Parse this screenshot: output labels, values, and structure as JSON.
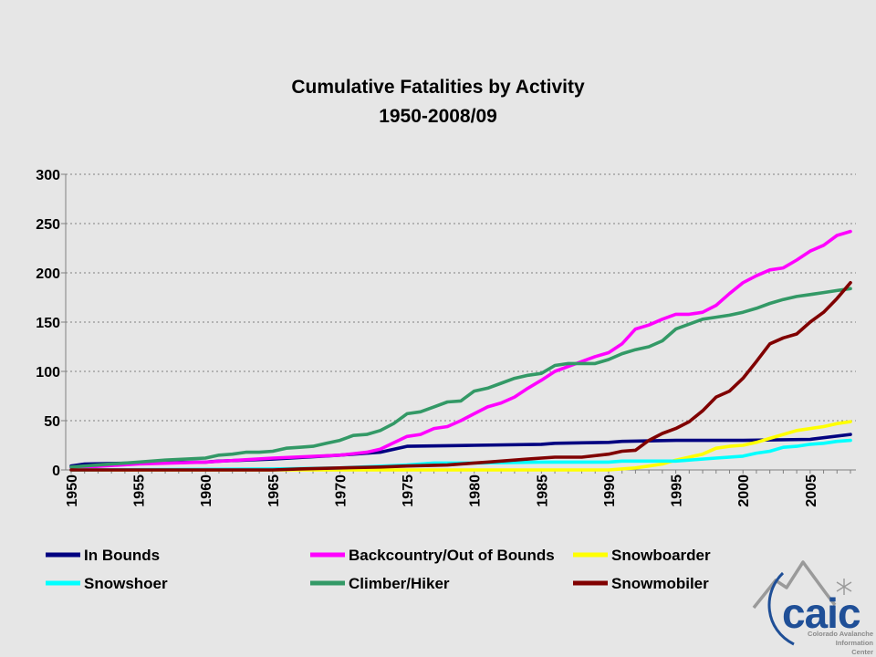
{
  "chart_data": {
    "type": "line",
    "title": "Cumulative Fatalities by Activity",
    "subtitle": "1950-2008/09",
    "xlabel": "",
    "ylabel": "",
    "xlim": [
      1950,
      2008
    ],
    "ylim": [
      0,
      300
    ],
    "yticks": [
      0,
      50,
      100,
      150,
      200,
      250,
      300
    ],
    "xticks": [
      1950,
      1955,
      1960,
      1965,
      1970,
      1975,
      1980,
      1985,
      1990,
      1995,
      2000,
      2005
    ],
    "grid": "horizontal dashed",
    "legend_position": "bottom",
    "series": [
      {
        "name": "In Bounds",
        "color": "#000080",
        "x": [
          1950,
          1951,
          1955,
          1960,
          1961,
          1965,
          1970,
          1973,
          1975,
          1980,
          1985,
          1986,
          1990,
          1991,
          1995,
          2000,
          2005,
          2008
        ],
        "y": [
          4,
          6,
          7,
          8,
          9,
          11,
          15,
          18,
          24,
          25,
          26,
          27,
          28,
          29,
          30,
          30,
          31,
          36
        ]
      },
      {
        "name": "Backcountry/Out of Bounds",
        "color": "#ff00ff",
        "x": [
          1950,
          1955,
          1960,
          1965,
          1970,
          1972,
          1973,
          1975,
          1976,
          1977,
          1978,
          1979,
          1980,
          1981,
          1982,
          1983,
          1984,
          1985,
          1986,
          1987,
          1988,
          1989,
          1990,
          1991,
          1992,
          1993,
          1994,
          1995,
          1996,
          1997,
          1998,
          1999,
          2000,
          2001,
          2002,
          2003,
          2004,
          2005,
          2006,
          2007,
          2008
        ],
        "y": [
          2,
          6,
          8,
          12,
          15,
          18,
          21,
          34,
          36,
          42,
          44,
          50,
          57,
          64,
          68,
          74,
          83,
          91,
          100,
          105,
          110,
          115,
          119,
          128,
          143,
          147,
          153,
          158,
          158,
          160,
          167,
          179,
          190,
          197,
          203,
          205,
          213,
          222,
          228,
          238,
          242
        ]
      },
      {
        "name": "Snowboarder",
        "color": "#ffff00",
        "x": [
          1950,
          1985,
          1990,
          1992,
          1993,
          1994,
          1995,
          1996,
          1997,
          1998,
          1999,
          2000,
          2001,
          2002,
          2003,
          2004,
          2005,
          2006,
          2007,
          2008
        ],
        "y": [
          0,
          0,
          0,
          2,
          4,
          6,
          10,
          13,
          16,
          22,
          24,
          25,
          28,
          32,
          36,
          40,
          42,
          44,
          47,
          49
        ]
      },
      {
        "name": "Snowshoer",
        "color": "#00ffff",
        "x": [
          1950,
          1965,
          1970,
          1975,
          1977,
          1980,
          1985,
          1990,
          1991,
          1995,
          1996,
          1998,
          2000,
          2001,
          2002,
          2003,
          2004,
          2005,
          2006,
          2007,
          2008
        ],
        "y": [
          0,
          1,
          2,
          5,
          7,
          7,
          8,
          8,
          9,
          9,
          10,
          12,
          14,
          17,
          19,
          23,
          24,
          26,
          27,
          29,
          30
        ]
      },
      {
        "name": "Climber/Hiker",
        "color": "#339966",
        "x": [
          1950,
          1952,
          1955,
          1957,
          1960,
          1961,
          1962,
          1963,
          1964,
          1965,
          1966,
          1967,
          1968,
          1969,
          1970,
          1971,
          1972,
          1973,
          1974,
          1975,
          1976,
          1977,
          1978,
          1979,
          1980,
          1981,
          1982,
          1983,
          1984,
          1985,
          1986,
          1987,
          1988,
          1989,
          1990,
          1991,
          1992,
          1993,
          1994,
          1995,
          1996,
          1997,
          1998,
          1999,
          2000,
          2001,
          2002,
          2003,
          2004,
          2005,
          2006,
          2007,
          2008
        ],
        "y": [
          3,
          5,
          8,
          10,
          12,
          15,
          16,
          18,
          18,
          19,
          22,
          23,
          24,
          27,
          30,
          35,
          36,
          40,
          47,
          57,
          59,
          64,
          69,
          70,
          80,
          83,
          88,
          93,
          96,
          98,
          106,
          108,
          108,
          108,
          112,
          118,
          122,
          125,
          131,
          143,
          148,
          153,
          155,
          157,
          160,
          164,
          169,
          173,
          176,
          178,
          180,
          182,
          184
        ]
      },
      {
        "name": "Snowmobiler",
        "color": "#800000",
        "x": [
          1950,
          1965,
          1967,
          1970,
          1973,
          1975,
          1978,
          1980,
          1981,
          1982,
          1984,
          1985,
          1986,
          1988,
          1990,
          1991,
          1992,
          1993,
          1994,
          1995,
          1996,
          1997,
          1998,
          1999,
          2000,
          2001,
          2002,
          2003,
          2004,
          2005,
          2006,
          2007,
          2008
        ],
        "y": [
          0,
          0,
          1,
          2,
          3,
          4,
          5,
          7,
          8,
          9,
          11,
          12,
          13,
          13,
          16,
          19,
          20,
          30,
          37,
          42,
          49,
          60,
          74,
          80,
          93,
          110,
          128,
          134,
          138,
          150,
          160,
          174,
          190
        ]
      }
    ]
  },
  "logo": {
    "name": "caic",
    "subtitle_lines": [
      "Colorado Avalanche",
      "Information",
      "Center"
    ]
  }
}
